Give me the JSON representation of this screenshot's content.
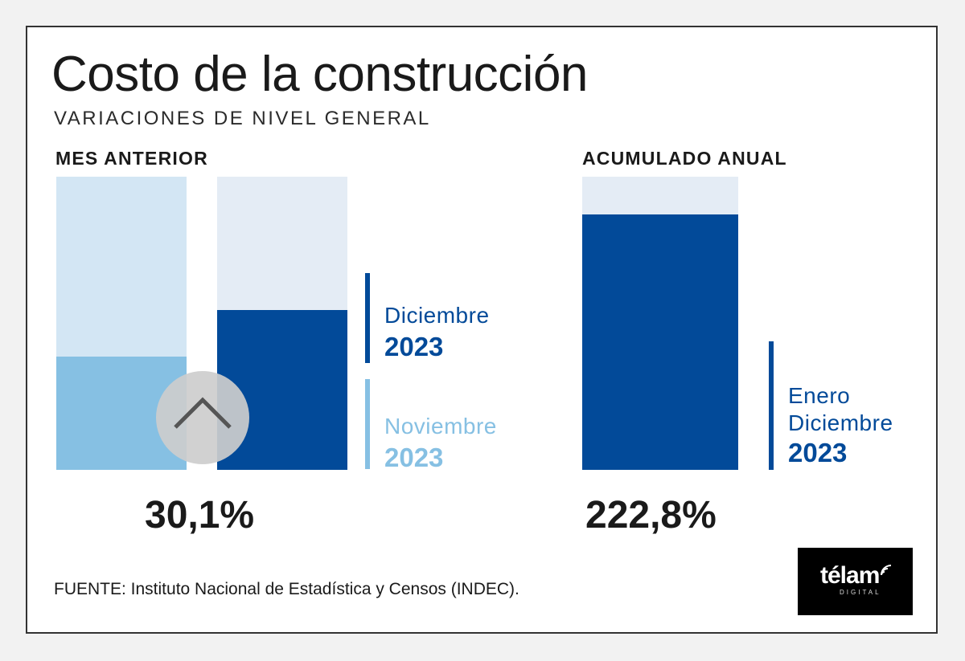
{
  "colors": {
    "dark_blue": "#024a99",
    "light_blue": "#86c0e3",
    "dark_bg": "#e4ecf5",
    "light_bg": "#d3e6f4",
    "text": "#1a1a1a"
  },
  "chart_data": [
    {
      "type": "bar",
      "title": "Costo de la construcción",
      "subtitle": "VARIACIONES DE NIVEL GENERAL",
      "panel_label": "MES ANTERIOR",
      "categories": [
        "Noviembre 2023",
        "Diciembre 2023"
      ],
      "values_fraction_of_column": [
        0.385,
        0.545
      ],
      "headline_value": "30,1%",
      "legend": [
        {
          "name": "Diciembre",
          "year": "2023",
          "color": "#024a99"
        },
        {
          "name": "Noviembre",
          "year": "2023",
          "color": "#86c0e3"
        }
      ]
    },
    {
      "type": "bar",
      "panel_label": "ACUMULADO ANUAL",
      "categories": [
        "Enero Diciembre 2023"
      ],
      "values_fraction_of_column": [
        0.87
      ],
      "headline_value": "222,8%",
      "legend": [
        {
          "name_line1": "Enero",
          "name_line2": "Diciembre",
          "year": "2023",
          "color": "#024a99"
        }
      ]
    }
  ],
  "source": "FUENTE: Instituto Nacional de Estadística y Censos (INDEC).",
  "logo": {
    "word": "télam",
    "sub": "DIGITAL"
  },
  "scroll_button": {
    "icon": "chevron-up-icon"
  }
}
